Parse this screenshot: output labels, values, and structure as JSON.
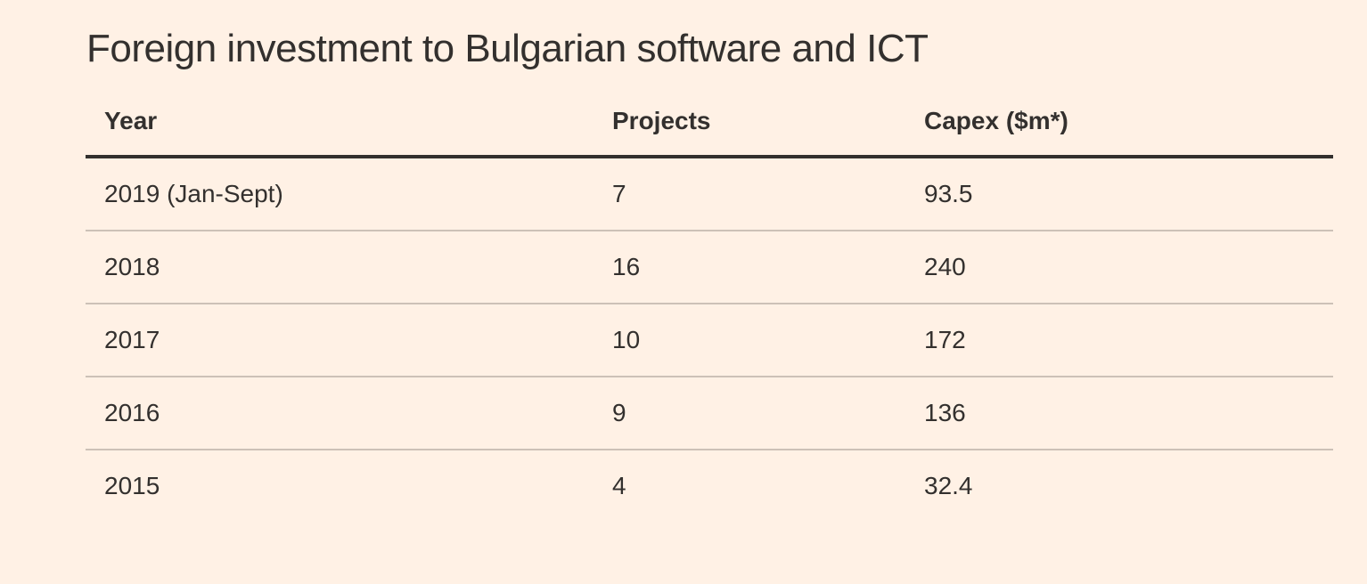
{
  "title": "Foreign investment to Bulgarian software and ICT",
  "table": {
    "columns": [
      {
        "key": "year",
        "label": "Year"
      },
      {
        "key": "projects",
        "label": "Projects"
      },
      {
        "key": "capex",
        "label": "Capex ($m*)"
      }
    ],
    "rows": [
      {
        "year": "2019 (Jan-Sept)",
        "projects": "7",
        "capex": "93.5"
      },
      {
        "year": "2018",
        "projects": "16",
        "capex": "240"
      },
      {
        "year": "2017",
        "projects": "10",
        "capex": "172"
      },
      {
        "year": "2016",
        "projects": "9",
        "capex": "136"
      },
      {
        "year": "2015",
        "projects": "4",
        "capex": "32.4"
      }
    ]
  },
  "colors": {
    "background": "#FFF1E5",
    "text": "#33302E",
    "header_rule": "#33302E",
    "row_divider": "#CCC1B7"
  },
  "chart_data": {
    "type": "table",
    "title": "Foreign investment to Bulgarian software and ICT",
    "columns": [
      "Year",
      "Projects",
      "Capex ($m*)"
    ],
    "rows": [
      [
        "2019 (Jan-Sept)",
        7,
        93.5
      ],
      [
        "2018",
        16,
        240
      ],
      [
        "2017",
        10,
        172
      ],
      [
        "2016",
        9,
        136
      ],
      [
        "2015",
        4,
        32.4
      ]
    ]
  }
}
